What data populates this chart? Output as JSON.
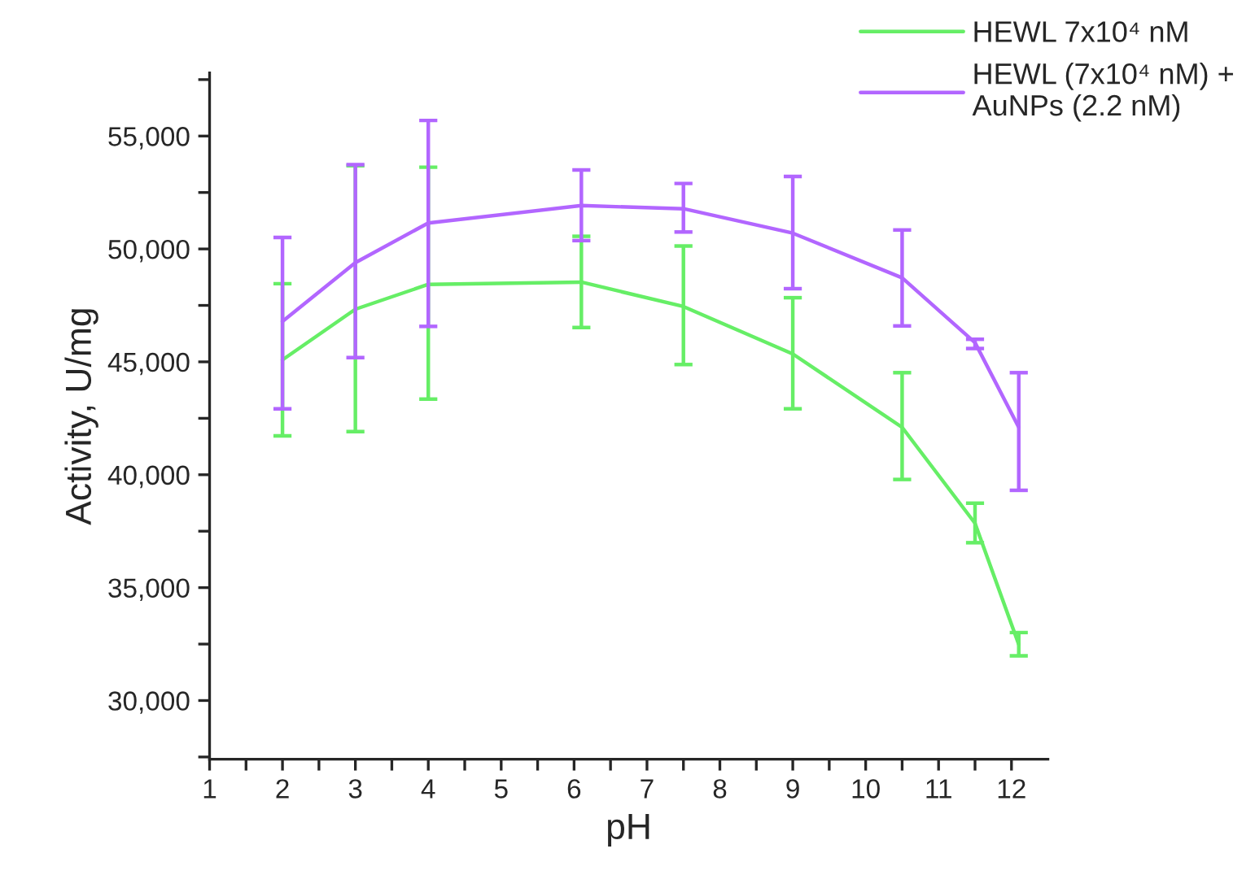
{
  "chart_data": {
    "type": "line",
    "xlabel": "pH",
    "ylabel": "Activity, U/mg",
    "x": [
      2,
      3,
      4,
      6.1,
      7.5,
      9,
      10.5,
      11.5,
      12.1
    ],
    "series": [
      {
        "name": "HEWL 7x10⁴ nM",
        "color": "#66ee66",
        "values": [
          45090,
          47330,
          48430,
          48530,
          47450,
          45350,
          42100,
          37850,
          32480
        ],
        "errors": [
          [
            41720,
            48460
          ],
          [
            41910,
            53690
          ],
          [
            43350,
            53620
          ],
          [
            46520,
            50560
          ],
          [
            44880,
            50130
          ],
          [
            42920,
            47840
          ],
          [
            39790,
            44520
          ],
          [
            36990,
            38740
          ],
          [
            31980,
            33010
          ]
        ]
      },
      {
        "name": "HEWL (7x10⁴ nM) +\nAuNPs (2.2 nM)",
        "color": "#b266ff",
        "values": [
          46790,
          49390,
          51150,
          51920,
          51780,
          50700,
          48720,
          45850,
          42100
        ],
        "errors": [
          [
            42920,
            50510
          ],
          [
            45190,
            53730
          ],
          [
            46570,
            55690
          ],
          [
            50370,
            53500
          ],
          [
            50750,
            52900
          ],
          [
            48240,
            53210
          ],
          [
            46590,
            50840
          ],
          [
            45590,
            46000
          ],
          [
            39310,
            44520
          ]
        ]
      }
    ],
    "xlim": [
      1,
      12.5
    ],
    "xticks": [
      1,
      {
        "value": 1.5,
        "label": null
      },
      2,
      {
        "value": 2.5,
        "label": null
      },
      3,
      {
        "value": 3.5,
        "label": null
      },
      4,
      {
        "value": 4.5,
        "label": null
      },
      5,
      {
        "value": 5.5,
        "label": null
      },
      6,
      {
        "value": 6.5,
        "label": null
      },
      7,
      {
        "value": 7.5,
        "label": null
      },
      8,
      {
        "value": 8.5,
        "label": null
      },
      9,
      {
        "value": 9.5,
        "label": null
      },
      10,
      {
        "value": 10.5,
        "label": null
      },
      11,
      {
        "value": 11.5,
        "label": null
      },
      12
    ],
    "ylim": [
      27400,
      57800
    ],
    "yticks": [
      {
        "value": 27500,
        "label": null
      },
      {
        "value": 30000,
        "label": "30,000"
      },
      {
        "value": 32500,
        "label": null
      },
      {
        "value": 35000,
        "label": "35,000"
      },
      {
        "value": 37500,
        "label": null
      },
      {
        "value": 40000,
        "label": "40,000"
      },
      {
        "value": 42500,
        "label": null
      },
      {
        "value": 45000,
        "label": "45,000"
      },
      {
        "value": 47500,
        "label": null
      },
      {
        "value": 50000,
        "label": "50,000"
      },
      {
        "value": 52500,
        "label": null
      },
      {
        "value": 55000,
        "label": "55,000"
      },
      {
        "value": 57500,
        "label": null
      }
    ],
    "grid": false,
    "legend": "top right",
    "marker": "none",
    "line_style": "solid"
  }
}
